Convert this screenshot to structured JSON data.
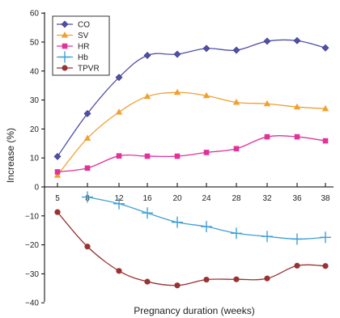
{
  "chart_data": {
    "type": "line",
    "title": "",
    "xlabel": "Pregnancy duration (weeks)",
    "ylabel": "Increase (%)",
    "ylim": [
      -40,
      60
    ],
    "yticks": [
      -40,
      -30,
      -20,
      -10,
      0,
      10,
      20,
      30,
      40,
      50,
      60
    ],
    "x": [
      5,
      8,
      12,
      16,
      20,
      24,
      28,
      32,
      36,
      38
    ],
    "xtick_labels": [
      "5",
      "8",
      "12",
      "16",
      "20",
      "24",
      "28",
      "32",
      "36",
      "38"
    ],
    "legend_position": "top-left",
    "grid": false,
    "series": [
      {
        "name": "CO",
        "color": "#5050a8",
        "marker": "diamond",
        "values": [
          10.5,
          25.3,
          37.8,
          45.4,
          45.8,
          47.8,
          47.2,
          50.3,
          50.5,
          48.0
        ]
      },
      {
        "name": "SV",
        "color": "#f0a030",
        "marker": "triangle",
        "values": [
          4.0,
          16.8,
          25.8,
          31.2,
          32.6,
          31.5,
          29.2,
          28.7,
          27.6,
          27.0
        ]
      },
      {
        "name": "HR",
        "color": "#e0339a",
        "marker": "square",
        "values": [
          5.2,
          6.5,
          10.7,
          10.6,
          10.6,
          11.9,
          13.2,
          17.3,
          17.3,
          15.9
        ]
      },
      {
        "name": "Hb",
        "color": "#3f9fd6",
        "marker": "plus",
        "values": [
          null,
          -3.5,
          -5.8,
          -9.0,
          -12.2,
          -13.7,
          -16.0,
          -17.1,
          -18.0,
          -17.4
        ]
      },
      {
        "name": "TPVR",
        "color": "#993333",
        "marker": "circle",
        "values": [
          -8.7,
          -20.6,
          -29.0,
          -32.7,
          -34.0,
          -32.0,
          -31.9,
          -31.6,
          -27.2,
          -27.3
        ]
      }
    ]
  }
}
